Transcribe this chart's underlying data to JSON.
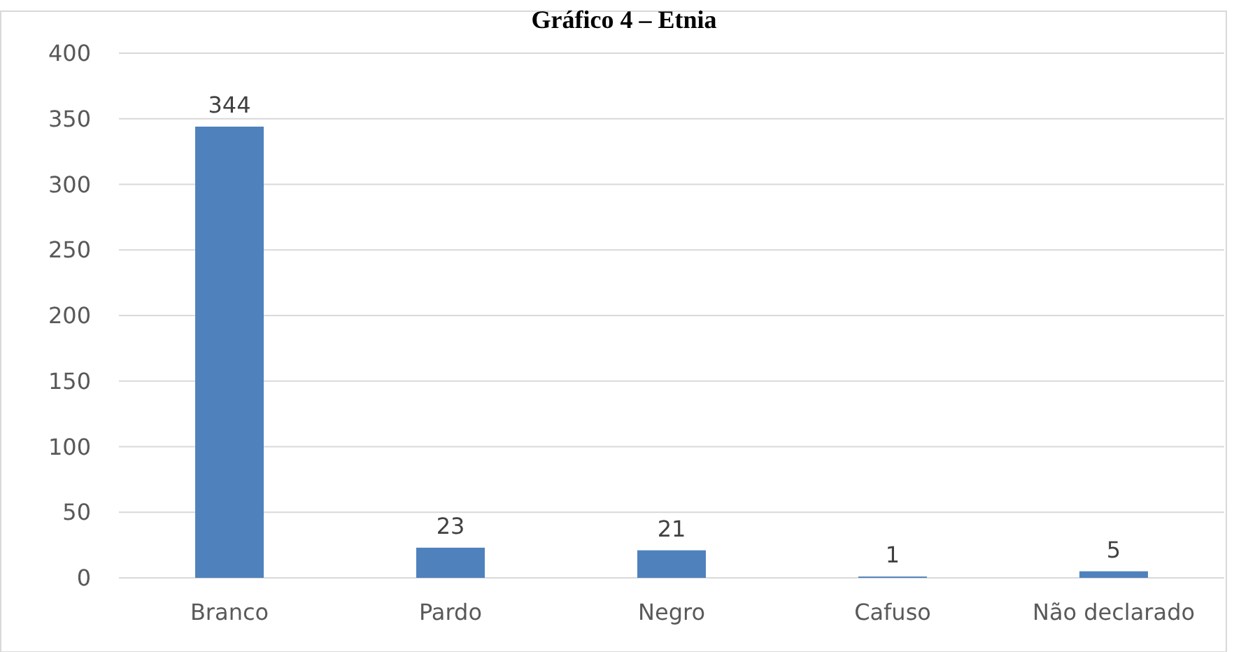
{
  "chart_data": {
    "type": "bar",
    "title": "Gráfico 4 – Etnia",
    "categories": [
      "Branco",
      "Pardo",
      "Negro",
      "Cafuso",
      "Não declarado"
    ],
    "values": [
      344,
      23,
      21,
      1,
      5
    ],
    "color": "#4f81bd",
    "ylim": [
      0,
      400
    ],
    "yticks": [
      0,
      50,
      100,
      150,
      200,
      250,
      300,
      350,
      400
    ],
    "grid": "y",
    "data_labels": true
  }
}
